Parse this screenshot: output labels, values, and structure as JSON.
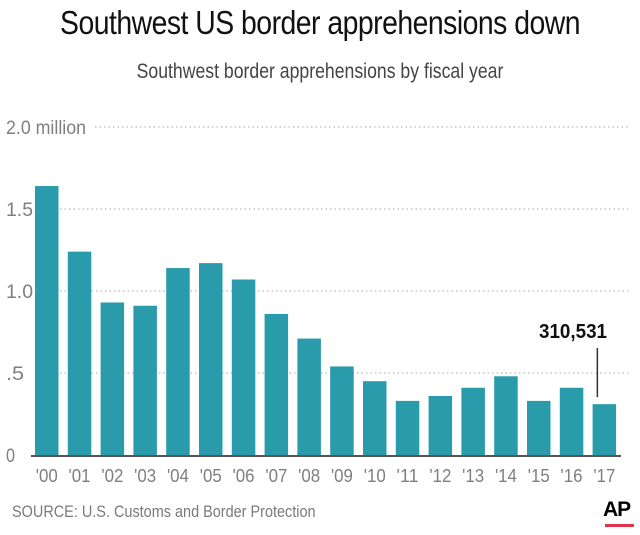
{
  "chart_data": {
    "type": "bar",
    "title": "Southwest US border apprehensions down",
    "subtitle": "Southwest border apprehensions by fiscal year",
    "xlabel": "",
    "ylabel": "",
    "ylim": [
      0,
      2.0
    ],
    "y_unit": "million",
    "grid": true,
    "categories": [
      "'00",
      "'01",
      "'02",
      "'03",
      "'04",
      "'05",
      "'06",
      "'07",
      "'08",
      "'09",
      "'10",
      "'11",
      "'12",
      "'13",
      "'14",
      "'15",
      "'16",
      "'17"
    ],
    "values": [
      1.64,
      1.24,
      0.93,
      0.91,
      1.14,
      1.17,
      1.07,
      0.86,
      0.71,
      0.54,
      0.45,
      0.33,
      0.36,
      0.41,
      0.48,
      0.33,
      0.41,
      0.31
    ],
    "y_ticks": [
      {
        "value": 0,
        "label": "0"
      },
      {
        "value": 0.5,
        "label": ".5"
      },
      {
        "value": 1.0,
        "label": "1.0"
      },
      {
        "value": 1.5,
        "label": "1.5"
      },
      {
        "value": 2.0,
        "label": "2.0 million"
      }
    ],
    "annotations": [
      {
        "category": "'17",
        "text": "310,531"
      }
    ],
    "bar_color": "#2a9baa",
    "source": "SOURCE: U.S. Customs and Border Protection",
    "credit": "AP",
    "credit_color": "#e0344c"
  }
}
